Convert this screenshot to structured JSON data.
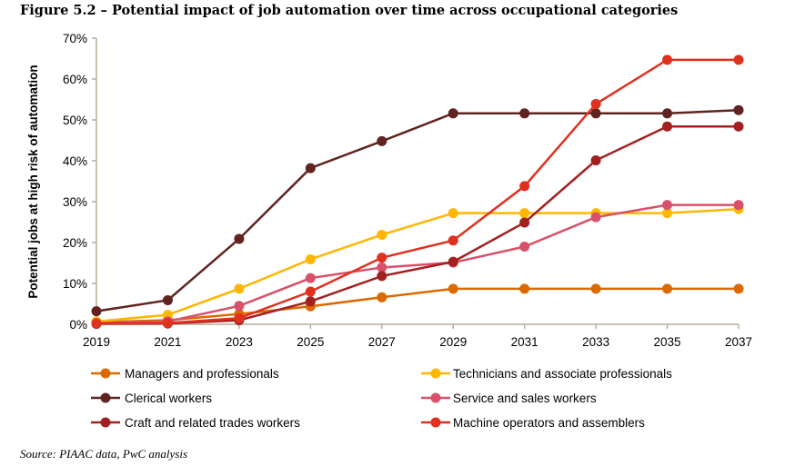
{
  "title": "Figure 5.2 – Potential impact of job automation over time across occupational categories",
  "source": "Source: PIAAC data, PwC analysis",
  "chart_data": {
    "type": "line",
    "title": "Figure 5.2 – Potential impact of job automation over time across occupational categories",
    "xlabel": "",
    "ylabel": "Potential jobs at high risk of automation",
    "x": [
      "2019",
      "2021",
      "2023",
      "2025",
      "2027",
      "2029",
      "2031",
      "2033",
      "2035",
      "2037"
    ],
    "ylim": [
      0,
      70
    ],
    "yticks": [
      "0%",
      "10%",
      "20%",
      "30%",
      "40%",
      "50%",
      "60%",
      "70%"
    ],
    "grid": false,
    "legend": "bottom",
    "series": [
      {
        "name": "Managers and professionals",
        "color": "#DC6900",
        "values": [
          0.5,
          1.0,
          2.5,
          4.4,
          6.6,
          8.7,
          8.7,
          8.7,
          8.7,
          8.7
        ]
      },
      {
        "name": "Technicians and associate professionals",
        "color": "#FFB600",
        "values": [
          0.7,
          2.3,
          8.7,
          15.9,
          21.9,
          27.2,
          27.2,
          27.2,
          27.2,
          28.2
        ]
      },
      {
        "name": "Clerical workers",
        "color": "#602320",
        "values": [
          3.2,
          5.9,
          20.9,
          38.2,
          44.8,
          51.6,
          51.6,
          51.6,
          51.6,
          52.4
        ]
      },
      {
        "name": "Service and sales workers",
        "color": "#D85069",
        "values": [
          0.3,
          0.7,
          4.5,
          11.3,
          13.9,
          15.1,
          19.0,
          26.2,
          29.2,
          29.2
        ]
      },
      {
        "name": "Craft and related trades workers",
        "color": "#A32020",
        "values": [
          0.1,
          0.2,
          1.0,
          5.6,
          11.8,
          15.3,
          24.9,
          40.1,
          48.4,
          48.4
        ]
      },
      {
        "name": "Machine operators and assemblers",
        "color": "#E0301E",
        "values": [
          0.2,
          0.3,
          1.5,
          8.0,
          16.3,
          20.5,
          33.8,
          53.9,
          64.7,
          64.7
        ]
      }
    ]
  }
}
